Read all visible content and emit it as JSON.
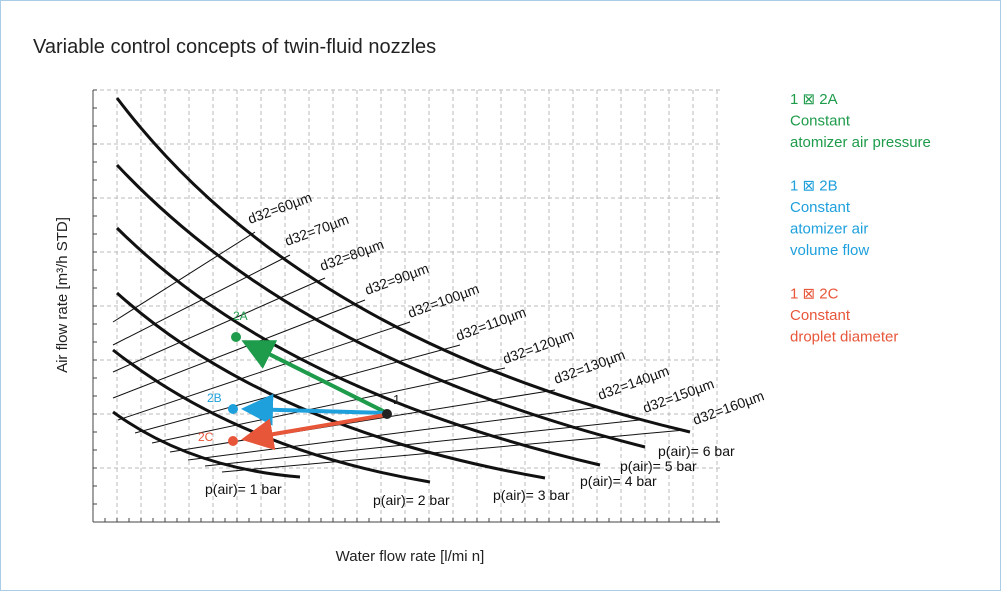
{
  "title": "Variable control concepts of twin-fluid nozzles",
  "axes": {
    "y_label": "Air flow rate   [m³/h STD]",
    "x_label": "Water flow rate   [l/mi n]"
  },
  "droplet_labels": [
    "d32=60µm",
    "d32=70µm",
    "d32=80µm",
    "d32=90µm",
    "d32=100µm",
    "d32=110µm",
    "d32=120µm",
    "d32=130µm",
    "d32=140µm",
    "d32=150µm",
    "d32=160µm"
  ],
  "pressure_labels": [
    "p(air)= 1 bar",
    "p(air)= 2 bar",
    "p(air)= 3 bar",
    "p(air)= 4 bar",
    "p(air)= 5 bar",
    "p(air)= 6 bar"
  ],
  "points": [
    {
      "label": "1",
      "color": "#222222"
    },
    {
      "label": "2A",
      "color": "#1e9b4b"
    },
    {
      "label": "2B",
      "color": "#1ea0dc"
    },
    {
      "label": "2C",
      "color": "#e8563a"
    }
  ],
  "legend": [
    {
      "lines": [
        "1 ⊠ 2A",
        "Constant",
        "atomizer air pressure"
      ],
      "color": "#1e9b4b"
    },
    {
      "lines": [
        "1 ⊠ 2B",
        "Constant",
        "atomizer air",
        "volume flow"
      ],
      "color": "#1ea0dc"
    },
    {
      "lines": [
        "1 ⊠ 2C",
        "Constant",
        "droplet diameter"
      ],
      "color": "#e8563a"
    }
  ]
}
